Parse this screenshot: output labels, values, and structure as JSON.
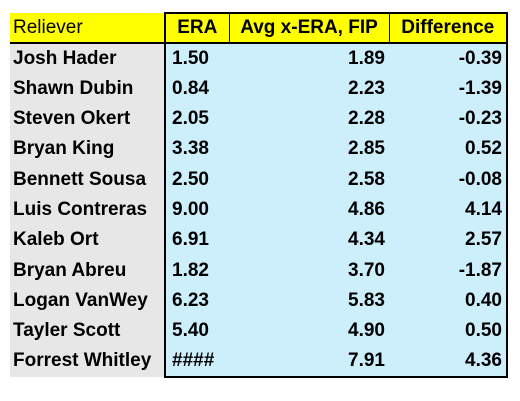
{
  "table": {
    "headers": {
      "name": "Reliever",
      "era": "ERA",
      "avg": "Avg  x-ERA, FIP",
      "diff": "Difference"
    },
    "rows": [
      {
        "name": "Josh Hader",
        "era": "1.50",
        "avg": "1.89",
        "diff": "-0.39"
      },
      {
        "name": "Shawn Dubin",
        "era": "0.84",
        "avg": "2.23",
        "diff": "-1.39"
      },
      {
        "name": "Steven Okert",
        "era": "2.05",
        "avg": "2.28",
        "diff": "-0.23"
      },
      {
        "name": "Bryan King",
        "era": "3.38",
        "avg": "2.85",
        "diff": "0.52"
      },
      {
        "name": "Bennett Sousa",
        "era": "2.50",
        "avg": "2.58",
        "diff": "-0.08"
      },
      {
        "name": "Luis Contreras",
        "era": "9.00",
        "avg": "4.86",
        "diff": "4.14"
      },
      {
        "name": "Kaleb Ort",
        "era": "6.91",
        "avg": "4.34",
        "diff": "2.57"
      },
      {
        "name": "Bryan Abreu",
        "era": "1.82",
        "avg": "3.70",
        "diff": "-1.87"
      },
      {
        "name": "Logan VanWey",
        "era": "6.23",
        "avg": "5.83",
        "diff": "0.40"
      },
      {
        "name": "Tayler Scott",
        "era": "5.40",
        "avg": "4.90",
        "diff": "0.50"
      },
      {
        "name": "Forrest Whitley",
        "era": "####",
        "avg": "7.91",
        "diff": "4.36"
      }
    ]
  },
  "colors": {
    "header_bg": "#ffff00",
    "name_bg": "#e7e7e7",
    "value_bg": "#cdeefb",
    "border": "#000000"
  }
}
